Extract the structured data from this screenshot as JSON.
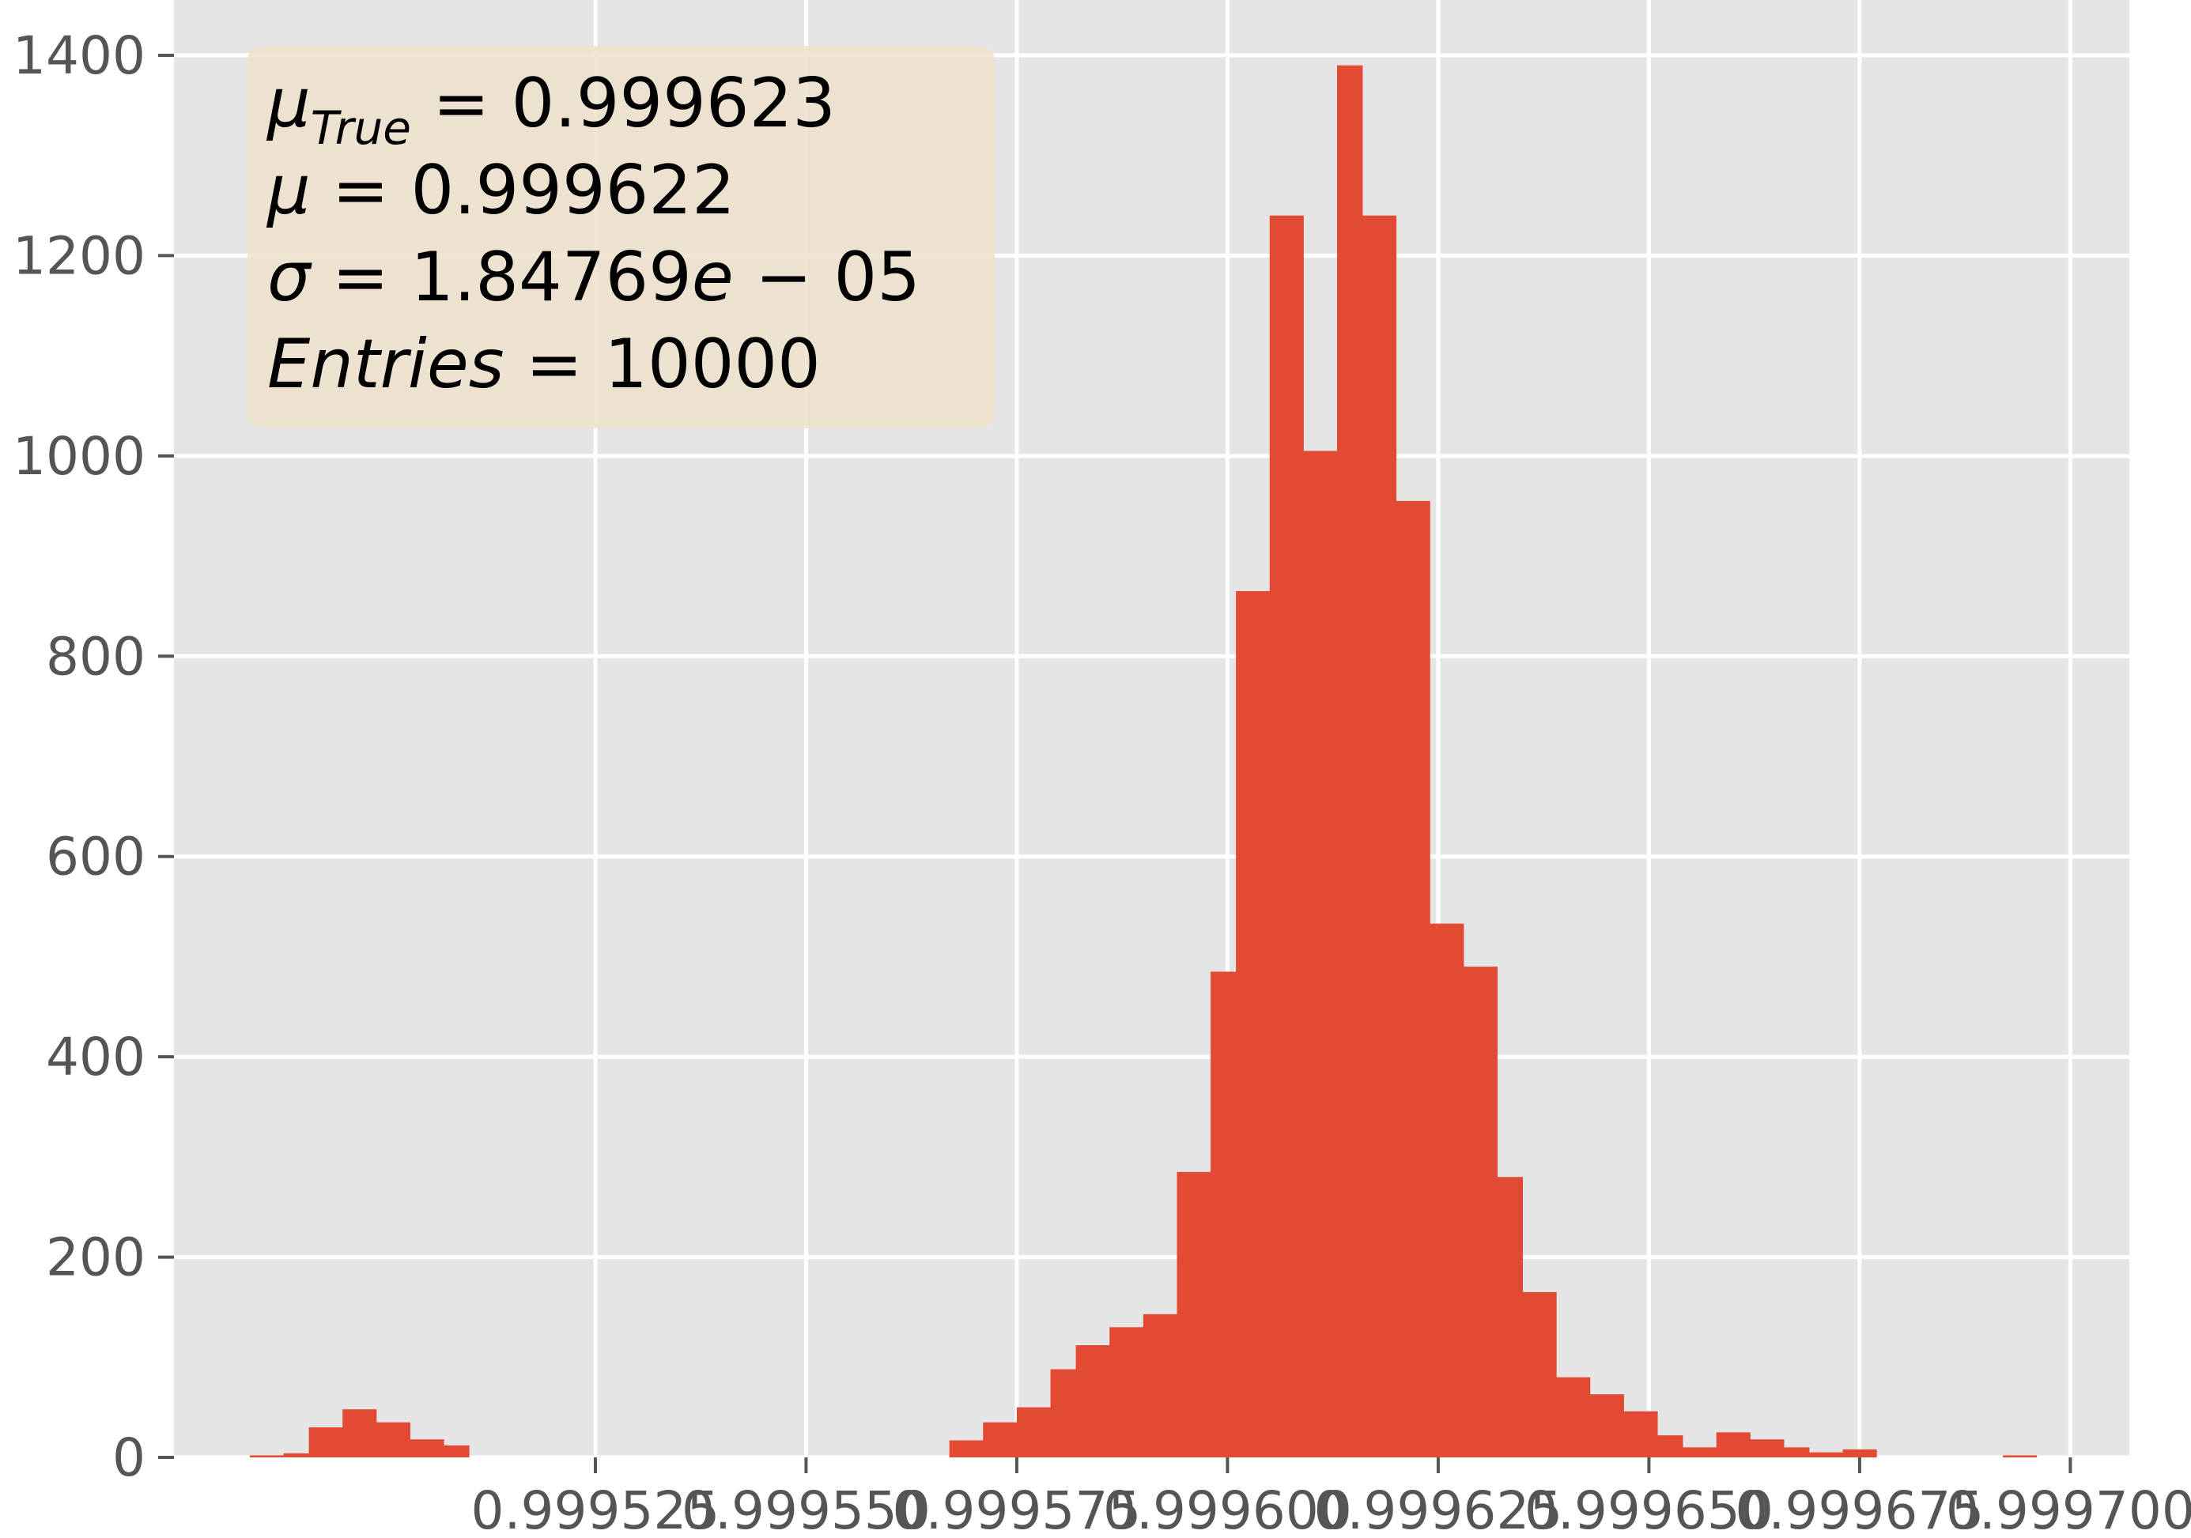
{
  "chart_data": {
    "type": "bar",
    "style": "histogram",
    "colors": {
      "bar": "#E24A33",
      "plot_background": "#E5E5E5",
      "grid": "#FFFFFF",
      "tick_label": "#555555",
      "stats_box": "#EFE1CB"
    },
    "title": "",
    "xlabel": "",
    "ylabel": "",
    "grid": true,
    "xlim": [
      0.999475,
      0.999707
    ],
    "ylim": [
      0,
      1400
    ],
    "x_ticks": [
      0.999525,
      0.99955,
      0.999575,
      0.9996,
      0.999625,
      0.99965,
      0.999675,
      0.9997
    ],
    "x_tick_labels": [
      "0.999525",
      "0.999550",
      "0.999575",
      "0.999600",
      "0.999625",
      "0.999650",
      "0.999675",
      "0.999700"
    ],
    "y_ticks": [
      0,
      200,
      400,
      600,
      800,
      1000,
      1200,
      1400
    ],
    "y_tick_labels": [
      "0",
      "200",
      "400",
      "600",
      "800",
      "1000",
      "1200",
      "1400"
    ],
    "bin_edges": [
      0.999484,
      0.999488,
      0.999491,
      0.999495,
      0.999499,
      0.999503,
      0.999507,
      0.99951,
      0.999514,
      0.999518,
      0.999522,
      0.999526,
      0.999529,
      0.999533,
      0.999537,
      0.999541,
      0.999544,
      0.999548,
      0.999552,
      0.999556,
      0.99956,
      0.999563,
      0.999567,
      0.999571,
      0.999575,
      0.999579,
      0.999582,
      0.999586,
      0.99959,
      0.999594,
      0.999598,
      0.999601,
      0.999605,
      0.999609,
      0.999613,
      0.999616,
      0.99962,
      0.999624,
      0.999628,
      0.999632,
      0.999635,
      0.999639,
      0.999643,
      0.999647,
      0.999651,
      0.999654,
      0.999658,
      0.999662,
      0.999666,
      0.999669,
      0.999673,
      0.999677,
      0.999681,
      0.999685,
      0.999688,
      0.999692,
      0.999696,
      0.9997
    ],
    "counts": [
      2,
      4,
      30,
      48,
      35,
      18,
      12,
      0,
      0,
      0,
      0,
      0,
      0,
      0,
      0,
      0,
      0,
      0,
      0,
      0,
      0,
      0,
      17,
      35,
      50,
      88,
      112,
      130,
      143,
      285,
      485,
      865,
      1240,
      1005,
      1390,
      1240,
      955,
      533,
      490,
      280,
      165,
      80,
      63,
      46,
      22,
      10,
      25,
      18,
      10,
      5,
      8,
      0,
      0,
      0,
      0,
      2,
      0
    ]
  },
  "stats_box": {
    "mu_true": {
      "symbol": "μ",
      "subscript": "True",
      "value": "0.999623"
    },
    "mu": {
      "symbol": "μ",
      "value": "0.999622"
    },
    "sigma": {
      "symbol": "σ",
      "mantissa": "1.84769",
      "exp_letter": "e",
      "exponent": "05"
    },
    "entries": {
      "label": "Entries",
      "value": "10000"
    }
  }
}
